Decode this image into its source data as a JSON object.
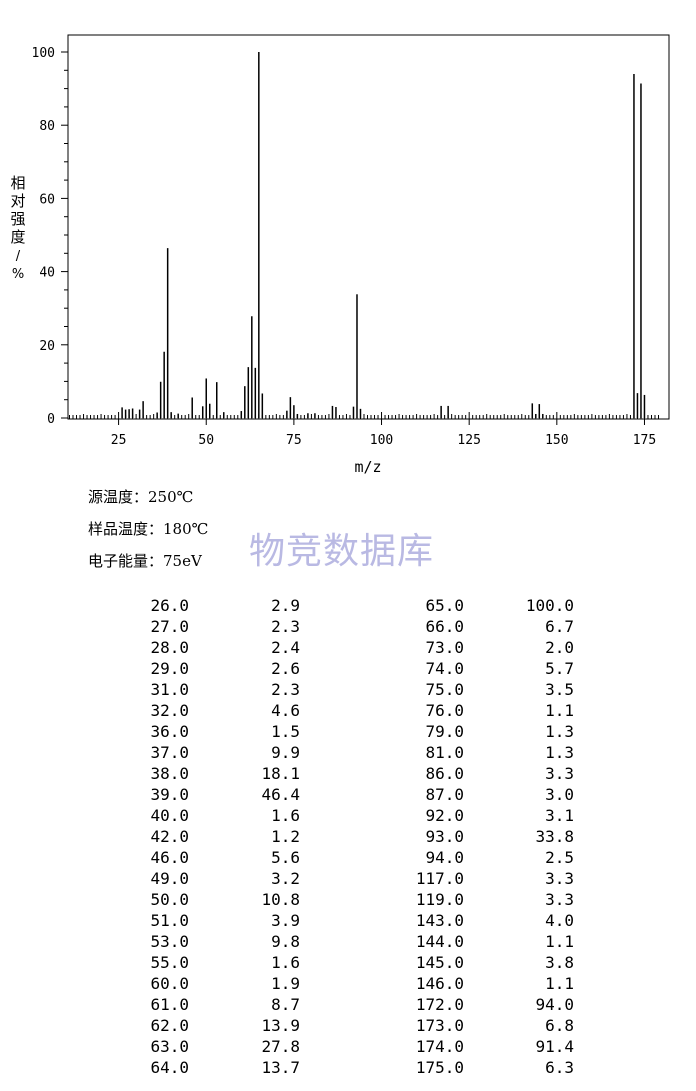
{
  "chart_data": {
    "type": "bar",
    "xlabel": "m/z",
    "ylabel": "相对强度/%",
    "xlim": [
      10,
      180
    ],
    "ylim": [
      0,
      100
    ],
    "xticks": [
      25,
      50,
      75,
      100,
      125,
      150,
      175
    ],
    "yticks": [
      0,
      20,
      40,
      60,
      80,
      100
    ],
    "grid": false,
    "peaks": [
      [
        26,
        2.9
      ],
      [
        27,
        2.3
      ],
      [
        28,
        2.4
      ],
      [
        29,
        2.6
      ],
      [
        31,
        2.3
      ],
      [
        32,
        4.6
      ],
      [
        36,
        1.5
      ],
      [
        37,
        9.9
      ],
      [
        38,
        18.1
      ],
      [
        39,
        46.4
      ],
      [
        40,
        1.6
      ],
      [
        42,
        1.2
      ],
      [
        46,
        5.6
      ],
      [
        49,
        3.2
      ],
      [
        50,
        10.8
      ],
      [
        51,
        3.9
      ],
      [
        53,
        9.8
      ],
      [
        55,
        1.6
      ],
      [
        60,
        1.9
      ],
      [
        61,
        8.7
      ],
      [
        62,
        13.9
      ],
      [
        63,
        27.8
      ],
      [
        64,
        13.7
      ],
      [
        65,
        100.0
      ],
      [
        66,
        6.7
      ],
      [
        73,
        2.0
      ],
      [
        74,
        5.7
      ],
      [
        75,
        3.5
      ],
      [
        76,
        1.1
      ],
      [
        79,
        1.3
      ],
      [
        81,
        1.3
      ],
      [
        86,
        3.3
      ],
      [
        87,
        3.0
      ],
      [
        92,
        3.1
      ],
      [
        93,
        33.8
      ],
      [
        94,
        2.5
      ],
      [
        117,
        3.3
      ],
      [
        119,
        3.3
      ],
      [
        143,
        4.0
      ],
      [
        144,
        1.1
      ],
      [
        145,
        3.8
      ],
      [
        146,
        1.1
      ],
      [
        172,
        94.0
      ],
      [
        173,
        6.8
      ],
      [
        174,
        91.4
      ],
      [
        175,
        6.3
      ]
    ]
  },
  "conditions": {
    "source_temp_label": "源温度：",
    "source_temp_value": "250℃",
    "sample_temp_label": "样品温度：",
    "sample_temp_value": "180℃",
    "electron_energy_label": "电子能量：",
    "electron_energy_value": "75eV"
  },
  "watermark": "物竞数据库",
  "table": {
    "left": [
      [
        "26.0",
        "2.9"
      ],
      [
        "27.0",
        "2.3"
      ],
      [
        "28.0",
        "2.4"
      ],
      [
        "29.0",
        "2.6"
      ],
      [
        "31.0",
        "2.3"
      ],
      [
        "32.0",
        "4.6"
      ],
      [
        "36.0",
        "1.5"
      ],
      [
        "37.0",
        "9.9"
      ],
      [
        "38.0",
        "18.1"
      ],
      [
        "39.0",
        "46.4"
      ],
      [
        "40.0",
        "1.6"
      ],
      [
        "42.0",
        "1.2"
      ],
      [
        "46.0",
        "5.6"
      ],
      [
        "49.0",
        "3.2"
      ],
      [
        "50.0",
        "10.8"
      ],
      [
        "51.0",
        "3.9"
      ],
      [
        "53.0",
        "9.8"
      ],
      [
        "55.0",
        "1.6"
      ],
      [
        "60.0",
        "1.9"
      ],
      [
        "61.0",
        "8.7"
      ],
      [
        "62.0",
        "13.9"
      ],
      [
        "63.0",
        "27.8"
      ],
      [
        "64.0",
        "13.7"
      ]
    ],
    "right": [
      [
        "65.0",
        "100.0"
      ],
      [
        "66.0",
        "6.7"
      ],
      [
        "73.0",
        "2.0"
      ],
      [
        "74.0",
        "5.7"
      ],
      [
        "75.0",
        "3.5"
      ],
      [
        "76.0",
        "1.1"
      ],
      [
        "79.0",
        "1.3"
      ],
      [
        "81.0",
        "1.3"
      ],
      [
        "86.0",
        "3.3"
      ],
      [
        "87.0",
        "3.0"
      ],
      [
        "92.0",
        "3.1"
      ],
      [
        "93.0",
        "33.8"
      ],
      [
        "94.0",
        "2.5"
      ],
      [
        "117.0",
        "3.3"
      ],
      [
        "119.0",
        "3.3"
      ],
      [
        "143.0",
        "4.0"
      ],
      [
        "144.0",
        "1.1"
      ],
      [
        "145.0",
        "3.8"
      ],
      [
        "146.0",
        "1.1"
      ],
      [
        "172.0",
        "94.0"
      ],
      [
        "173.0",
        "6.8"
      ],
      [
        "174.0",
        "91.4"
      ],
      [
        "175.0",
        "6.3"
      ]
    ]
  }
}
